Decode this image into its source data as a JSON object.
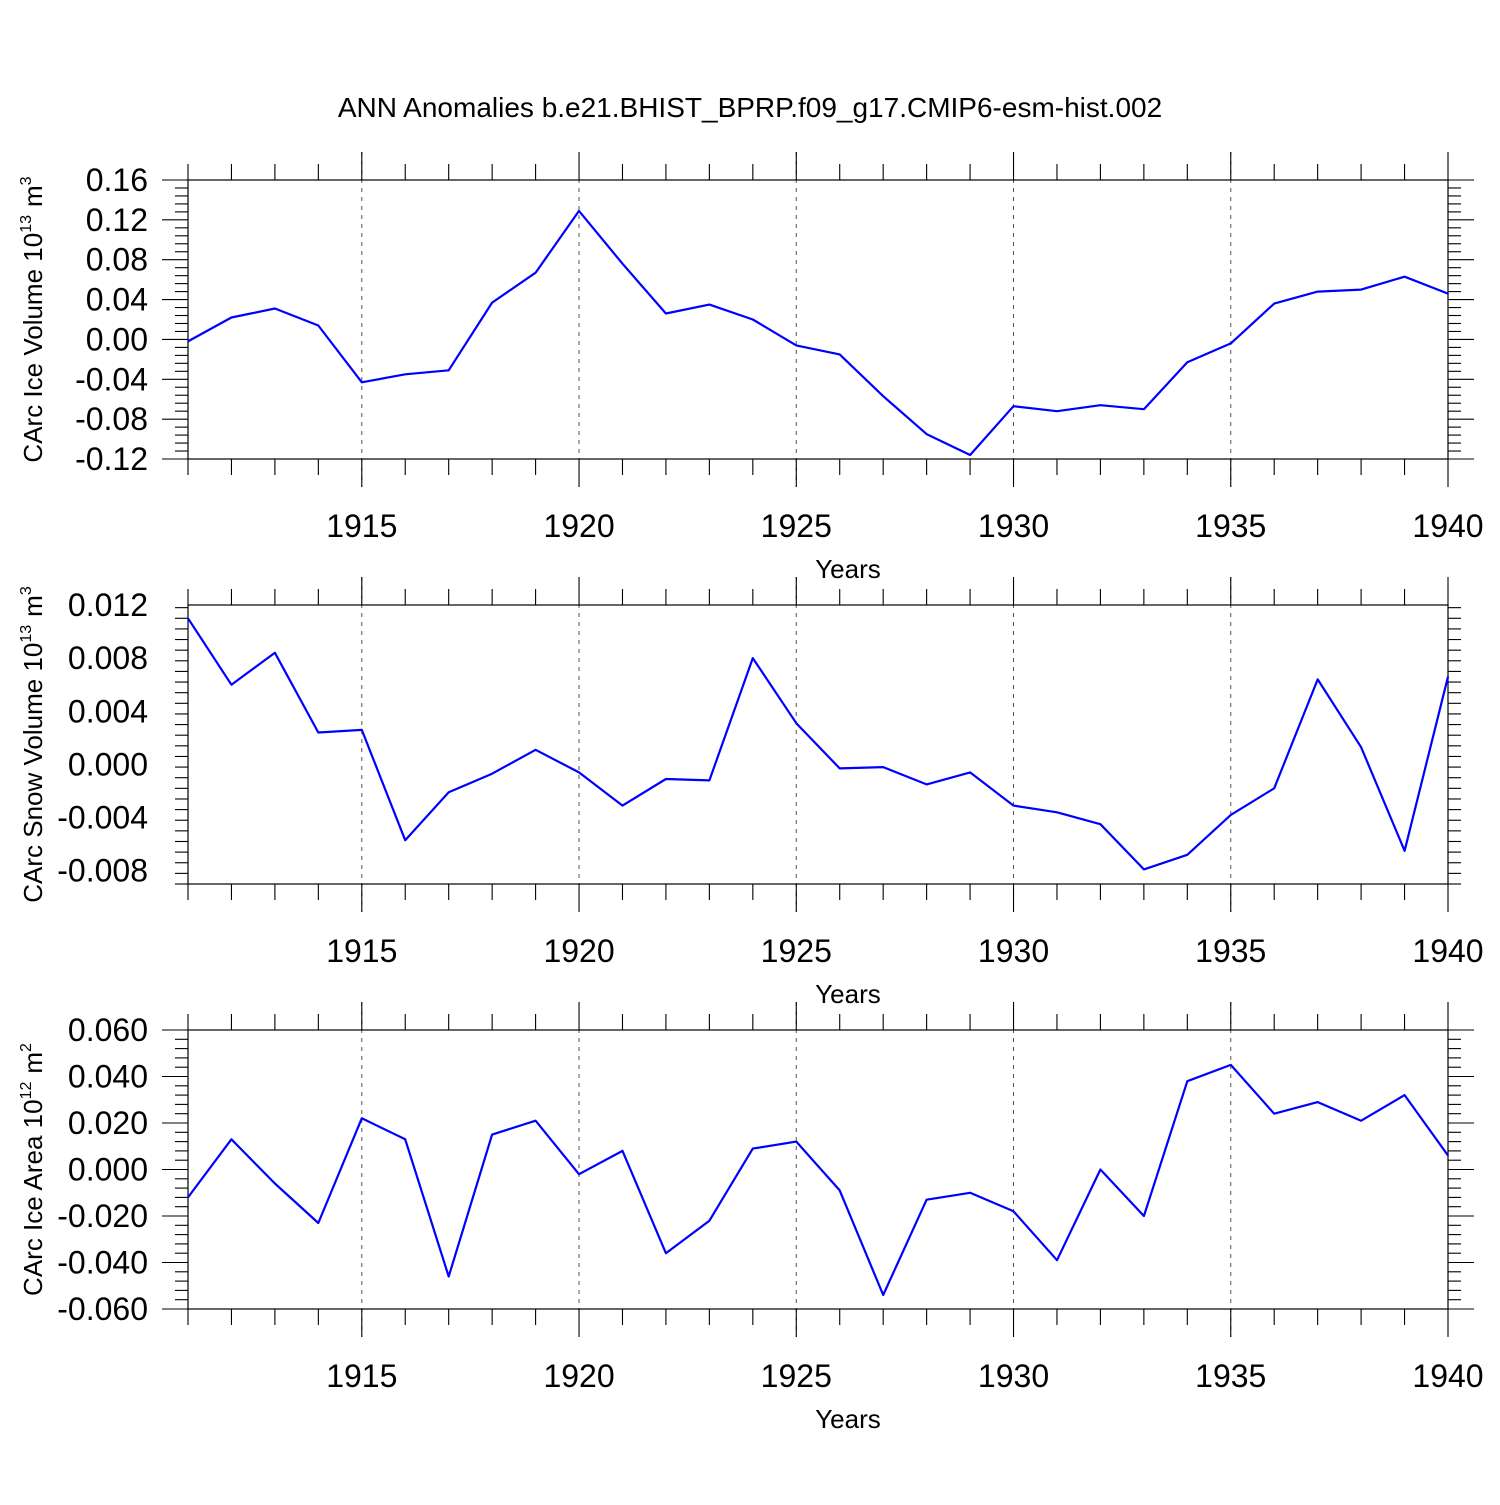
{
  "title": "ANN Anomalies b.e21.BHIST_BPRP.f09_g17.CMIP6-esm-hist.002",
  "colors": {
    "line": "#0000ff",
    "axis": "#000000",
    "grid": "#555555"
  },
  "chart_data": [
    {
      "type": "line",
      "ylabel_base": "CArc Ice Volume 10",
      "ylabel_exp": "13",
      "ylabel_unit": "m",
      "ylabel_unit_exp": "3",
      "xlabel": "Years",
      "xlim": [
        1911,
        1940
      ],
      "ylim": [
        -0.12,
        0.16
      ],
      "x_ticks": [
        1915,
        1920,
        1925,
        1930,
        1935,
        1940
      ],
      "y_ticks": [
        "-0.12",
        "-0.08",
        "-0.04",
        "0.00",
        "0.04",
        "0.08",
        "0.12",
        "0.16"
      ],
      "grid_x": true,
      "x": [
        1911,
        1912,
        1913,
        1914,
        1915,
        1916,
        1917,
        1918,
        1919,
        1920,
        1921,
        1922,
        1923,
        1924,
        1925,
        1926,
        1927,
        1928,
        1929,
        1930,
        1931,
        1932,
        1933,
        1934,
        1935,
        1936,
        1937,
        1938,
        1939,
        1940
      ],
      "values": [
        -0.002,
        0.022,
        0.031,
        0.014,
        -0.043,
        -0.035,
        -0.031,
        0.037,
        0.067,
        0.129,
        0.076,
        0.026,
        0.035,
        0.02,
        -0.006,
        -0.015,
        -0.057,
        -0.095,
        -0.116,
        -0.067,
        -0.072,
        -0.066,
        -0.07,
        -0.023,
        -0.004,
        0.036,
        0.048,
        0.05,
        0.063,
        0.046
      ]
    },
    {
      "type": "line",
      "ylabel_base": "CArc Snow Volume 10",
      "ylabel_exp": "13",
      "ylabel_unit": "m",
      "ylabel_unit_exp": "3",
      "xlabel": "Years",
      "xlim": [
        1911,
        1940
      ],
      "ylim": [
        -0.009,
        0.012
      ],
      "x_ticks": [
        1915,
        1920,
        1925,
        1930,
        1935,
        1940
      ],
      "y_ticks": [
        "-0.008",
        "-0.004",
        "0.000",
        "0.004",
        "0.008",
        "0.012"
      ],
      "grid_x": true,
      "x": [
        1911,
        1912,
        1913,
        1914,
        1915,
        1916,
        1917,
        1918,
        1919,
        1920,
        1921,
        1922,
        1923,
        1924,
        1925,
        1926,
        1927,
        1928,
        1929,
        1930,
        1931,
        1932,
        1933,
        1934,
        1935,
        1936,
        1937,
        1938,
        1939,
        1940
      ],
      "values": [
        0.011,
        0.006,
        0.0084,
        0.0024,
        0.0026,
        -0.0057,
        -0.0021,
        -0.0007,
        0.0011,
        -0.0006,
        -0.0031,
        -0.0011,
        -0.0012,
        0.008,
        0.0031,
        -0.0003,
        -0.0002,
        -0.0015,
        -0.0006,
        -0.0031,
        -0.0036,
        -0.0045,
        -0.0079,
        -0.0068,
        -0.0038,
        -0.0018,
        0.0064,
        0.0013,
        -0.0065,
        0.0066
      ]
    },
    {
      "type": "line",
      "ylabel_base": "CArc Ice Area 10",
      "ylabel_exp": "12",
      "ylabel_unit": "m",
      "ylabel_unit_exp": "2",
      "xlabel": "Years",
      "xlim": [
        1911,
        1940
      ],
      "ylim": [
        -0.06,
        0.06
      ],
      "x_ticks": [
        1915,
        1920,
        1925,
        1930,
        1935,
        1940
      ],
      "y_ticks": [
        "-0.060",
        "-0.040",
        "-0.020",
        "0.000",
        "0.020",
        "0.040",
        "0.060"
      ],
      "grid_x": true,
      "x": [
        1911,
        1912,
        1913,
        1914,
        1915,
        1916,
        1917,
        1918,
        1919,
        1920,
        1921,
        1922,
        1923,
        1924,
        1925,
        1926,
        1927,
        1928,
        1929,
        1930,
        1931,
        1932,
        1933,
        1934,
        1935,
        1936,
        1937,
        1938,
        1939,
        1940
      ],
      "values": [
        -0.012,
        0.013,
        -0.006,
        -0.023,
        0.022,
        0.013,
        -0.046,
        0.015,
        0.021,
        -0.002,
        0.008,
        -0.036,
        -0.022,
        0.009,
        0.012,
        -0.009,
        -0.054,
        -0.013,
        -0.01,
        -0.018,
        -0.039,
        0.0,
        -0.02,
        0.038,
        0.045,
        0.024,
        0.029,
        0.021,
        0.032,
        0.006
      ]
    }
  ]
}
